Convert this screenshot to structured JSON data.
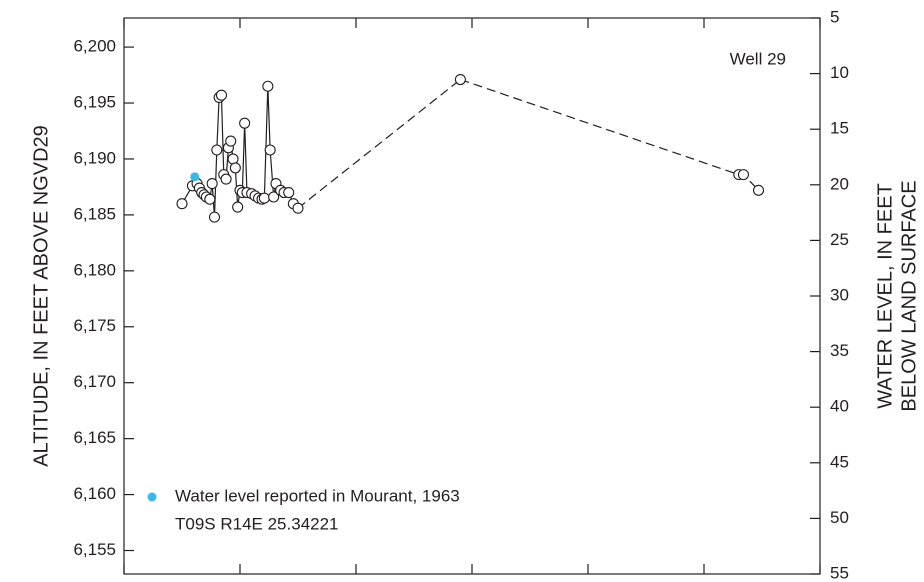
{
  "chart_data": {
    "type": "line",
    "ylabel": "ALTITUDE, IN FEET ABOVE NGVD29",
    "y2label": [
      "WATER LEVEL, IN FEET",
      "BELOW LAND SURFACE"
    ],
    "annotations": [
      "Well 29",
      "T09S R14E 25.34221"
    ],
    "xlim": [
      1950,
      2010
    ],
    "xticks": [
      1950,
      1960,
      1970,
      1980,
      1990,
      2000,
      2010
    ],
    "ylim": [
      6152.9,
      6202.6
    ],
    "yticks": [
      {
        "value": 6155,
        "label": "6,155"
      },
      {
        "value": 6160,
        "label": "6,160"
      },
      {
        "value": 6165,
        "label": "6,165"
      },
      {
        "value": 6170,
        "label": "6,170"
      },
      {
        "value": 6175,
        "label": "6,175"
      },
      {
        "value": 6180,
        "label": "6,180"
      },
      {
        "value": 6185,
        "label": "6,185"
      },
      {
        "value": 6190,
        "label": "6,190"
      },
      {
        "value": 6195,
        "label": "6,195"
      },
      {
        "value": 6200,
        "label": "6,200"
      }
    ],
    "y2lim": [
      55,
      5
    ],
    "y2ticks": [
      5,
      10,
      15,
      20,
      25,
      30,
      35,
      40,
      45,
      50,
      55
    ],
    "series": [
      {
        "color": "#231f20",
        "line": "solid",
        "x": [
          1955.0,
          1955.9,
          1956.3,
          1956.5,
          1956.7,
          1956.9,
          1957.1,
          1957.4,
          1957.6,
          1957.8,
          1958.0,
          1958.2,
          1958.4,
          1958.6,
          1958.8,
          1959.0,
          1959.2,
          1959.4,
          1959.6,
          1959.8,
          1960.0,
          1960.2,
          1960.4,
          1960.6,
          1961.0,
          1961.3,
          1961.6,
          1961.9,
          1962.1,
          1962.4,
          1962.6,
          1962.9,
          1963.1,
          1963.5,
          1963.8,
          1964.2,
          1964.6,
          1965.0
        ],
        "values": [
          6186.0,
          6187.6,
          6187.8,
          6187.4,
          6187.0,
          6186.8,
          6186.6,
          6186.4,
          6187.8,
          6184.8,
          6190.8,
          6195.5,
          6195.7,
          6188.6,
          6188.2,
          6191.0,
          6191.6,
          6190.0,
          6189.2,
          6185.7,
          6187.2,
          6187.0,
          6193.2,
          6187.0,
          6186.9,
          6186.7,
          6186.5,
          6186.4,
          6186.5,
          6196.5,
          6190.8,
          6186.6,
          6187.8,
          6187.2,
          6187.0,
          6187.0,
          6186.0,
          6185.6
        ]
      },
      {
        "color": "#231f20",
        "line": "dashed",
        "x": [
          1979.0,
          2003.0,
          2003.4,
          2004.7
        ],
        "values": [
          6197.1,
          6188.6,
          6188.6,
          6187.2
        ]
      },
      {
        "name": "Water level reported in Mourant, 1963",
        "color": "#3ab8e6",
        "line": "none",
        "x": [
          1956.1
        ],
        "values": [
          6188.4
        ]
      }
    ]
  }
}
